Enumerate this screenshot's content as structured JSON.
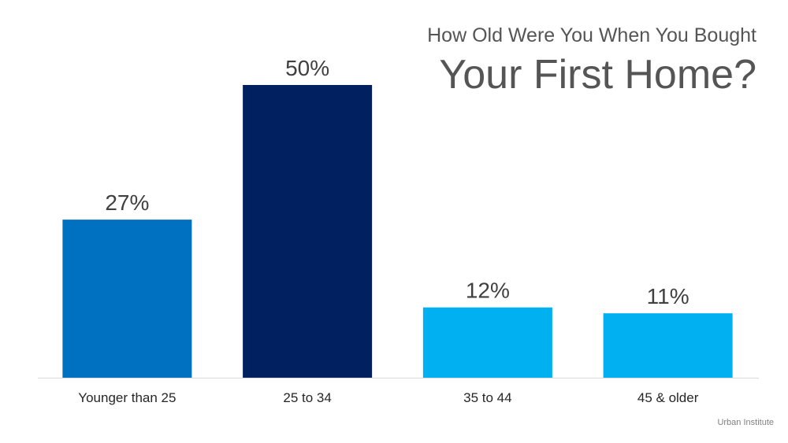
{
  "chart_data": {
    "type": "bar",
    "title_line1": "How Old Were You When You Bought",
    "title_line2": "Your First Home?",
    "categories": [
      "Younger than 25",
      "25 to 34",
      "35 to 44",
      "45 & older"
    ],
    "values": [
      27,
      50,
      12,
      11
    ],
    "value_labels": [
      "27%",
      "50%",
      "12%",
      "11%"
    ],
    "colors": [
      "#0070C0",
      "#002060",
      "#00B0F0",
      "#00B0F0"
    ],
    "xlabel": "",
    "ylabel": "",
    "ylim": [
      0,
      50
    ],
    "grid": false,
    "legend": "none"
  },
  "source": "Urban Institute"
}
